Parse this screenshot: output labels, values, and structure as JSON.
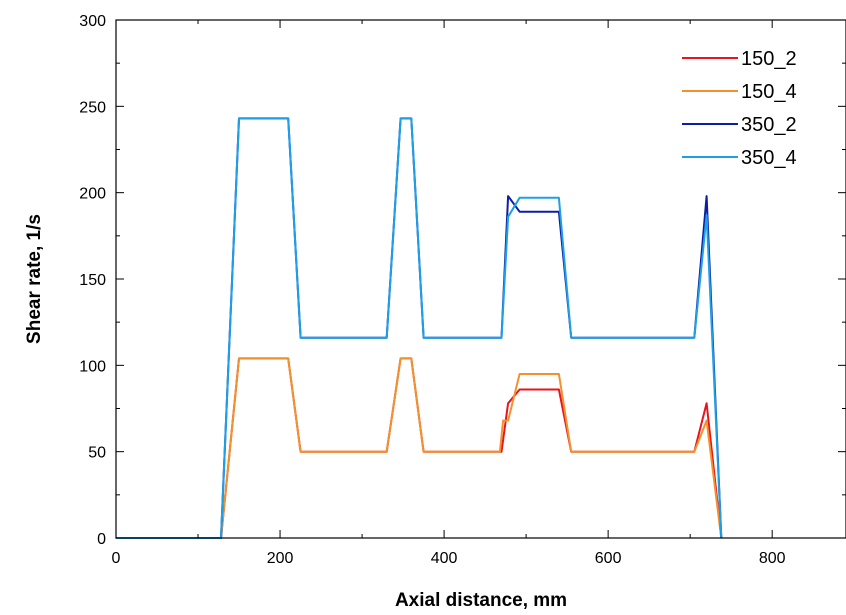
{
  "chart_data": {
    "type": "line",
    "xlabel": "Axial distance, mm",
    "ylabel": "Shear rate, 1/s",
    "xlim": [
      0,
      890
    ],
    "ylim": [
      0,
      300
    ],
    "xticks": [
      0,
      200,
      400,
      600,
      800
    ],
    "yticks": [
      0,
      50,
      100,
      150,
      200,
      250,
      300
    ],
    "grid": false,
    "legend_position": "top-right",
    "series": [
      {
        "name": "150_2",
        "color": "#e8141e",
        "points": [
          [
            0,
            0
          ],
          [
            128,
            0
          ],
          [
            150,
            104
          ],
          [
            210,
            104
          ],
          [
            225,
            50
          ],
          [
            330,
            50
          ],
          [
            347,
            104
          ],
          [
            360,
            104
          ],
          [
            375,
            50
          ],
          [
            470,
            50
          ],
          [
            478,
            78
          ],
          [
            492,
            86
          ],
          [
            540,
            86
          ],
          [
            555,
            50
          ],
          [
            705,
            50
          ],
          [
            720,
            78
          ],
          [
            738,
            0
          ]
        ]
      },
      {
        "name": "150_4",
        "color": "#f0922e",
        "points": [
          [
            0,
            0
          ],
          [
            128,
            0
          ],
          [
            150,
            104
          ],
          [
            210,
            104
          ],
          [
            225,
            50
          ],
          [
            330,
            50
          ],
          [
            347,
            104
          ],
          [
            360,
            104
          ],
          [
            375,
            50
          ],
          [
            468,
            50
          ],
          [
            472,
            68
          ],
          [
            478,
            68
          ],
          [
            492,
            95
          ],
          [
            540,
            95
          ],
          [
            555,
            50
          ],
          [
            705,
            50
          ],
          [
            720,
            68
          ],
          [
            738,
            0
          ]
        ]
      },
      {
        "name": "350_2",
        "color": "#0a1fa5",
        "points": [
          [
            0,
            0
          ],
          [
            128,
            0
          ],
          [
            150,
            243
          ],
          [
            210,
            243
          ],
          [
            225,
            116
          ],
          [
            330,
            116
          ],
          [
            347,
            243
          ],
          [
            360,
            243
          ],
          [
            375,
            116
          ],
          [
            470,
            116
          ],
          [
            478,
            198
          ],
          [
            492,
            189
          ],
          [
            540,
            189
          ],
          [
            555,
            116
          ],
          [
            705,
            116
          ],
          [
            720,
            198
          ],
          [
            738,
            0
          ]
        ]
      },
      {
        "name": "350_4",
        "color": "#1ea0e6",
        "points": [
          [
            0,
            0
          ],
          [
            128,
            0
          ],
          [
            150,
            243
          ],
          [
            210,
            243
          ],
          [
            225,
            116
          ],
          [
            330,
            116
          ],
          [
            347,
            243
          ],
          [
            360,
            243
          ],
          [
            375,
            116
          ],
          [
            470,
            116
          ],
          [
            478,
            186
          ],
          [
            492,
            197
          ],
          [
            540,
            197
          ],
          [
            555,
            116
          ],
          [
            705,
            116
          ],
          [
            720,
            187
          ],
          [
            738,
            0
          ]
        ]
      }
    ]
  }
}
